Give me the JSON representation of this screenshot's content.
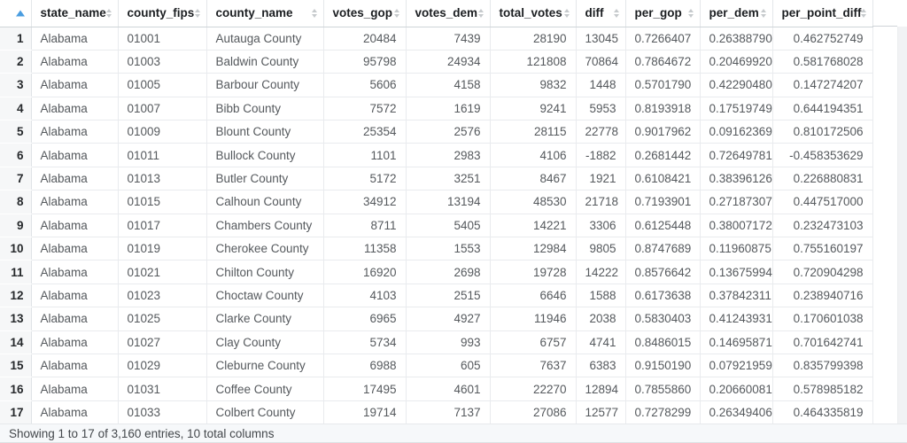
{
  "colors": {
    "sort_active": "#4a9de0",
    "sort_inactive": "#c6cacd"
  },
  "table": {
    "columns": [
      "state_name",
      "county_fips",
      "county_name",
      "votes_gop",
      "votes_dem",
      "total_votes",
      "diff",
      "per_gop",
      "per_dem",
      "per_point_diff"
    ],
    "sort": {
      "column": "row_index",
      "direction": "ascending"
    },
    "rows": [
      [
        "1",
        "Alabama",
        "01001",
        "Autauga County",
        "20484",
        "7439",
        "28190",
        "13045",
        "0.7266407",
        "0.26388790",
        "0.462752749"
      ],
      [
        "2",
        "Alabama",
        "01003",
        "Baldwin County",
        "95798",
        "24934",
        "121808",
        "70864",
        "0.7864672",
        "0.20469920",
        "0.581768028"
      ],
      [
        "3",
        "Alabama",
        "01005",
        "Barbour County",
        "5606",
        "4158",
        "9832",
        "1448",
        "0.5701790",
        "0.42290480",
        "0.147274207"
      ],
      [
        "4",
        "Alabama",
        "01007",
        "Bibb County",
        "7572",
        "1619",
        "9241",
        "5953",
        "0.8193918",
        "0.17519749",
        "0.644194351"
      ],
      [
        "5",
        "Alabama",
        "01009",
        "Blount County",
        "25354",
        "2576",
        "28115",
        "22778",
        "0.9017962",
        "0.09162369",
        "0.810172506"
      ],
      [
        "6",
        "Alabama",
        "01011",
        "Bullock County",
        "1101",
        "2983",
        "4106",
        "-1882",
        "0.2681442",
        "0.72649781",
        "-0.458353629"
      ],
      [
        "7",
        "Alabama",
        "01013",
        "Butler County",
        "5172",
        "3251",
        "8467",
        "1921",
        "0.6108421",
        "0.38396126",
        "0.226880831"
      ],
      [
        "8",
        "Alabama",
        "01015",
        "Calhoun County",
        "34912",
        "13194",
        "48530",
        "21718",
        "0.7193901",
        "0.27187307",
        "0.447517000"
      ],
      [
        "9",
        "Alabama",
        "01017",
        "Chambers County",
        "8711",
        "5405",
        "14221",
        "3306",
        "0.6125448",
        "0.38007172",
        "0.232473103"
      ],
      [
        "10",
        "Alabama",
        "01019",
        "Cherokee County",
        "11358",
        "1553",
        "12984",
        "9805",
        "0.8747689",
        "0.11960875",
        "0.755160197"
      ],
      [
        "11",
        "Alabama",
        "01021",
        "Chilton County",
        "16920",
        "2698",
        "19728",
        "14222",
        "0.8576642",
        "0.13675994",
        "0.720904298"
      ],
      [
        "12",
        "Alabama",
        "01023",
        "Choctaw County",
        "4103",
        "2515",
        "6646",
        "1588",
        "0.6173638",
        "0.37842311",
        "0.238940716"
      ],
      [
        "13",
        "Alabama",
        "01025",
        "Clarke County",
        "6965",
        "4927",
        "11946",
        "2038",
        "0.5830403",
        "0.41243931",
        "0.170601038"
      ],
      [
        "14",
        "Alabama",
        "01027",
        "Clay County",
        "5734",
        "993",
        "6757",
        "4741",
        "0.8486015",
        "0.14695871",
        "0.701642741"
      ],
      [
        "15",
        "Alabama",
        "01029",
        "Cleburne County",
        "6988",
        "605",
        "7637",
        "6383",
        "0.9150190",
        "0.07921959",
        "0.835799398"
      ],
      [
        "16",
        "Alabama",
        "01031",
        "Coffee County",
        "17495",
        "4601",
        "22270",
        "12894",
        "0.7855860",
        "0.20660081",
        "0.578985182"
      ],
      [
        "17",
        "Alabama",
        "01033",
        "Colbert County",
        "19714",
        "7137",
        "27086",
        "12577",
        "0.7278299",
        "0.26349406",
        "0.464335819"
      ]
    ],
    "info": "Showing 1 to 17 of 3,160 entries, 10 total columns"
  }
}
